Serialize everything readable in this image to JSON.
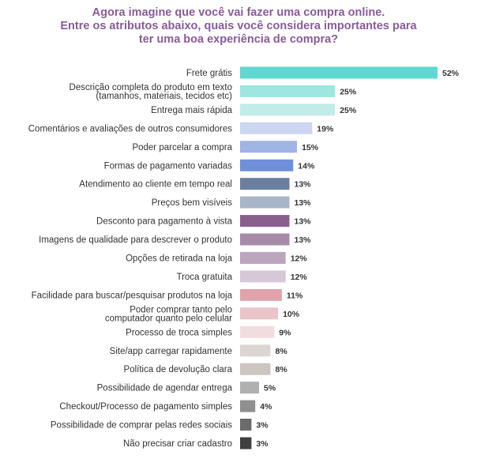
{
  "title_lines": [
    "Agora imagine que você vai fazer uma compra online.",
    "Entre os atributos abaixo, quais você considera importantes para",
    "ter uma boa experiência de compra?"
  ],
  "chart_data": {
    "type": "bar",
    "orientation": "horizontal",
    "title": "Agora imagine que você vai fazer uma compra online. Entre os atributos abaixo, quais você considera importantes para ter uma boa experiência de compra?",
    "xlabel": "",
    "ylabel": "",
    "xlim": [
      0,
      52
    ],
    "grid": false,
    "categories": [
      "Frete grátis",
      "Descrição completa do produto em texto\n(tamanhos, materiais, tecidos etc)",
      "Entrega mais rápida",
      "Comentários e avaliações de outros consumidores",
      "Poder parcelar a compra",
      "Formas de pagamento variadas",
      "Atendimento ao cliente em tempo real",
      "Preços bem visíveis",
      "Desconto para pagamento à vista",
      "Imagens de qualidade para descrever o produto",
      "Opções de retirada na loja",
      "Troca gratuita",
      "Facilidade para buscar/pesquisar produtos na loja",
      "Poder comprar tanto pelo\ncomputador quanto pelo celular",
      "Processo de troca simples",
      "Site/app carregar rapidamente",
      "Política de devolução clara",
      "Possibilidade de agendar entrega",
      "Checkout/Processo de pagamento simples",
      "Possibilidade de comprar pelas redes sociais",
      "Não precisar criar cadastro"
    ],
    "values": [
      52,
      25,
      25,
      19,
      15,
      14,
      13,
      13,
      13,
      13,
      12,
      12,
      11,
      10,
      9,
      8,
      8,
      5,
      4,
      3,
      3
    ],
    "value_labels": [
      "52%",
      "25%",
      "25%",
      "19%",
      "15%",
      "14%",
      "13%",
      "13%",
      "13%",
      "13%",
      "12%",
      "12%",
      "11%",
      "10%",
      "9%",
      "8%",
      "8%",
      "5%",
      "4%",
      "3%",
      "3%"
    ],
    "colors": [
      "#5ed8d0",
      "#9ee6e0",
      "#c2ece8",
      "#ccd6f2",
      "#9fb4e4",
      "#6f8fda",
      "#6a7ea0",
      "#a9b6c9",
      "#8a5f8e",
      "#a78aa8",
      "#bba6bd",
      "#d6c8d6",
      "#e0a3ac",
      "#e9c4c8",
      "#f1dcde",
      "#dcd6d2",
      "#cdc5c0",
      "#b0b0b0",
      "#8f8f8f",
      "#6b6b6b",
      "#3f3f3f"
    ]
  }
}
